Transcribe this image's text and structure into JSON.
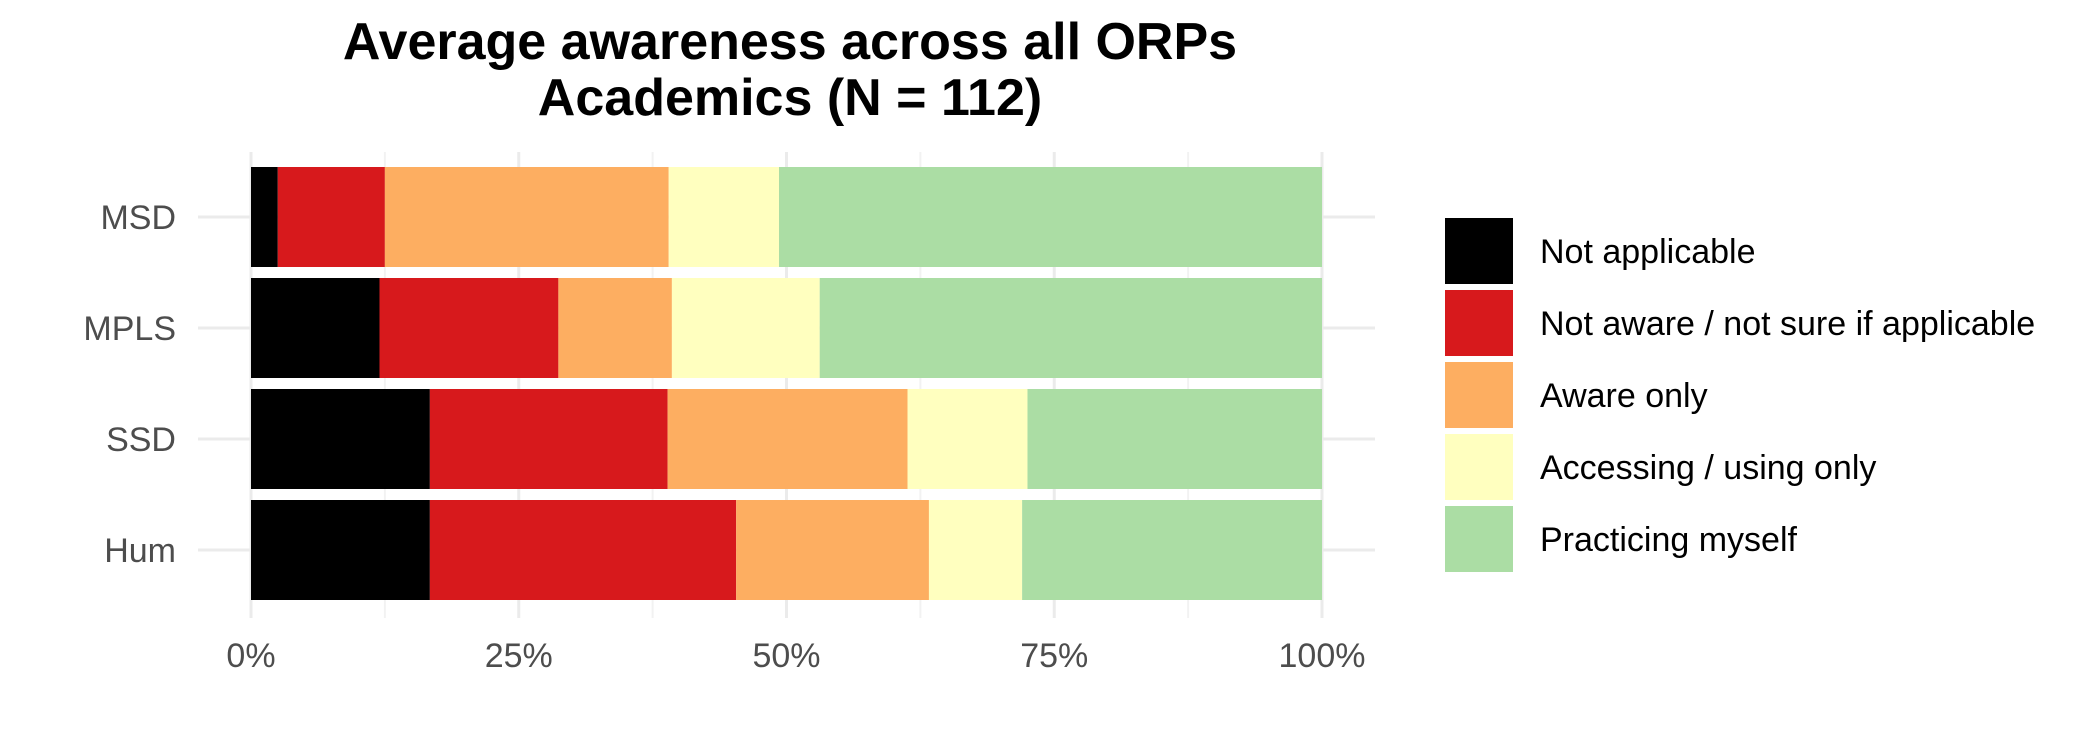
{
  "chart_data": {
    "type": "bar",
    "orientation": "horizontal",
    "stacked": "percent",
    "title": "Average awareness across all ORPs",
    "subtitle": "Academics (N = 112)",
    "xlabel": "",
    "ylabel": "",
    "xlim": [
      0,
      100
    ],
    "x_ticks": [
      "0%",
      "25%",
      "50%",
      "75%",
      "100%"
    ],
    "categories": [
      "MSD",
      "MPLS",
      "SSD",
      "Hum"
    ],
    "series": [
      {
        "name": "Not applicable",
        "color": "#000000",
        "values": [
          2.5,
          12.0,
          16.7,
          16.7
        ]
      },
      {
        "name": "Not aware / not sure if applicable",
        "color": "#d7191c",
        "values": [
          10.0,
          16.7,
          22.2,
          28.6
        ]
      },
      {
        "name": "Aware only",
        "color": "#fdae61",
        "values": [
          26.5,
          10.6,
          22.4,
          18.0
        ]
      },
      {
        "name": "Accessing / using only",
        "color": "#ffffbf",
        "values": [
          10.3,
          13.8,
          11.2,
          8.7
        ]
      },
      {
        "name": "Practicing myself",
        "color": "#abdda4",
        "values": [
          50.7,
          46.9,
          27.5,
          28.0
        ]
      }
    ],
    "grid": true,
    "legend_position": "right"
  }
}
